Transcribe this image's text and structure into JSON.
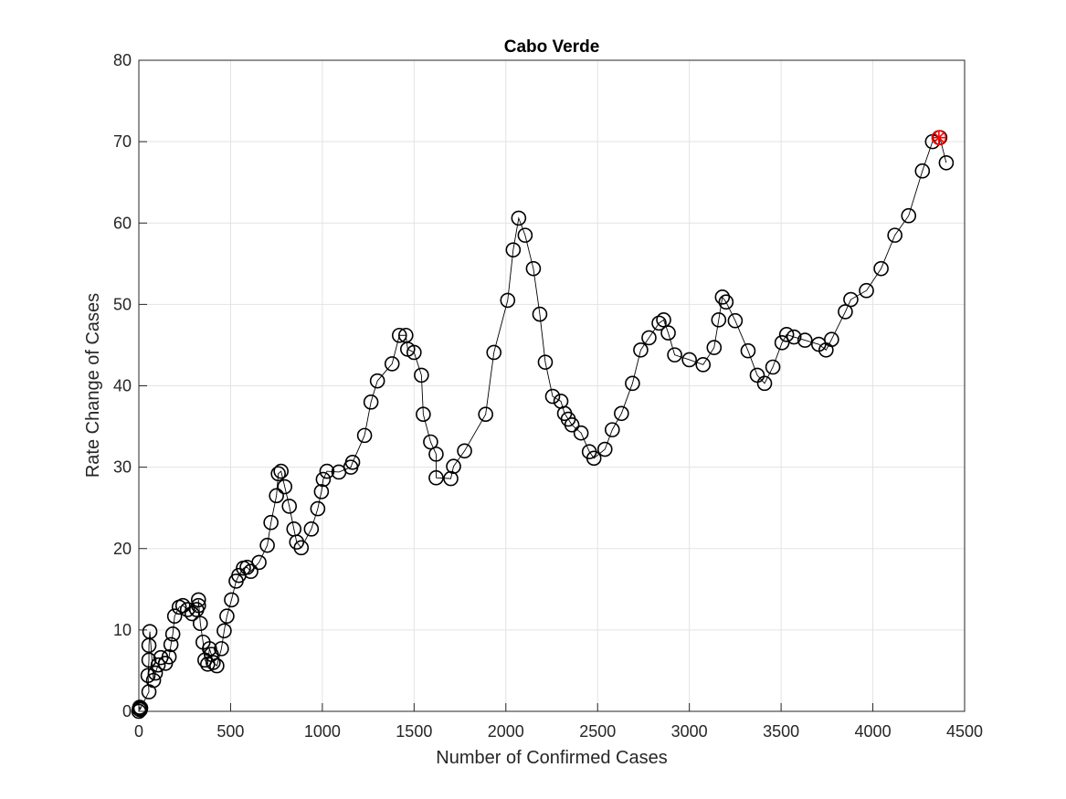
{
  "chart_data": {
    "type": "line",
    "title": "Cabo Verde",
    "x_label": "Number of Confirmed Cases",
    "y_label": "Rate Change of Cases",
    "xlim": [
      0,
      4500
    ],
    "xticks": [
      0,
      500,
      1000,
      1500,
      2000,
      2500,
      3000,
      3500,
      4000,
      4500
    ],
    "ylim": [
      0,
      80
    ],
    "yticks": [
      0,
      10,
      20,
      30,
      40,
      50,
      60,
      70,
      80
    ],
    "grid": true,
    "series": [
      {
        "color": "#000000",
        "marker": "o",
        "x": [
          0,
          2,
          5,
          8,
          10,
          55,
          50,
          55,
          55,
          60,
          80,
          90,
          105,
          120,
          145,
          165,
          175,
          185,
          195,
          220,
          240,
          265,
          290,
          315,
          325,
          325,
          335,
          350,
          360,
          375,
          385,
          395,
          405,
          425,
          450,
          465,
          480,
          505,
          530,
          545,
          570,
          590,
          610,
          655,
          700,
          720,
          750,
          760,
          775,
          795,
          820,
          845,
          860,
          885,
          940,
          975,
          995,
          1005,
          1025,
          1090,
          1155,
          1165,
          1230,
          1265,
          1300,
          1380,
          1420,
          1455,
          1465,
          1500,
          1540,
          1550,
          1590,
          1620,
          1620,
          1700,
          1715,
          1775,
          1890,
          1935,
          2010,
          2040,
          2070,
          2105,
          2150,
          2185,
          2215,
          2255,
          2300,
          2320,
          2340,
          2360,
          2410,
          2455,
          2480,
          2540,
          2580,
          2630,
          2690,
          2735,
          2780,
          2835,
          2860,
          2885,
          2920,
          3000,
          3075,
          3135,
          3160,
          3180,
          3200,
          3250,
          3320,
          3370,
          3410,
          3455,
          3505,
          3530,
          3570,
          3630,
          3705,
          3745,
          3775,
          3850,
          3880,
          3965,
          4045,
          4120,
          4195,
          4270,
          4325,
          4365,
          4400
        ],
        "values": [
          0,
          0.3,
          0.5,
          0.2,
          0.4,
          2.4,
          4.4,
          6.3,
          8.1,
          9.8,
          3.8,
          4.7,
          5.7,
          6.6,
          5.9,
          6.7,
          8.2,
          9.5,
          11.7,
          12.8,
          13.0,
          12.5,
          12.0,
          12.5,
          13.0,
          13.7,
          10.8,
          8.5,
          6.3,
          5.8,
          7.7,
          7.0,
          6.0,
          5.6,
          7.7,
          9.9,
          11.7,
          13.7,
          16.0,
          16.7,
          17.6,
          17.7,
          17.2,
          18.3,
          20.4,
          23.2,
          26.5,
          29.2,
          29.5,
          27.6,
          25.2,
          22.4,
          20.8,
          20.1,
          22.4,
          24.9,
          27.0,
          28.5,
          29.5,
          29.4,
          30.0,
          30.6,
          33.9,
          38.0,
          40.6,
          42.7,
          46.2,
          46.2,
          44.5,
          44.1,
          41.3,
          36.5,
          33.1,
          31.6,
          28.7,
          28.6,
          30.1,
          32.0,
          36.5,
          44.1,
          50.5,
          56.7,
          60.6,
          58.5,
          54.4,
          48.8,
          42.9,
          38.7,
          38.1,
          36.6,
          35.9,
          35.2,
          34.2,
          31.9,
          31.1,
          32.2,
          34.6,
          36.6,
          40.3,
          44.4,
          45.9,
          47.7,
          48.1,
          46.5,
          43.8,
          43.2,
          42.6,
          44.7,
          48.1,
          50.9,
          50.3,
          48.0,
          44.3,
          41.3,
          40.3,
          42.3,
          45.3,
          46.3,
          46.0,
          45.6,
          45.1,
          44.4,
          45.7,
          49.1,
          50.6,
          51.7,
          54.4,
          58.5,
          60.9,
          66.4,
          70.0,
          70.5,
          67.4
        ]
      },
      {
        "color": "#ff0000",
        "marker": "*",
        "x": [
          4360
        ],
        "values": [
          70.5
        ]
      }
    ]
  }
}
